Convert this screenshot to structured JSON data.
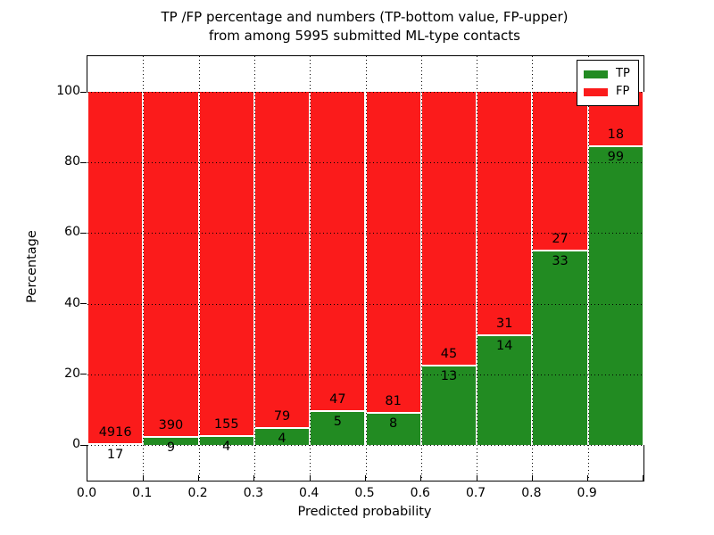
{
  "title": {
    "line1": "TP /FP percentage and numbers (TP-bottom value, FP-upper)",
    "line2": "from among 5995 submitted ML-type contacts"
  },
  "axes": {
    "xlabel": "Predicted probability",
    "ylabel": "Percentage",
    "x_tick_labels": [
      "0.0",
      "0.1",
      "0.2",
      "0.3",
      "0.4",
      "0.5",
      "0.6",
      "0.7",
      "0.8",
      "0.9"
    ],
    "y_tick_labels": [
      "0",
      "20",
      "40",
      "60",
      "80",
      "100"
    ]
  },
  "legend": {
    "items": [
      {
        "label": "TP",
        "color": "#228b22"
      },
      {
        "label": "FP",
        "color": "#fb1b1b"
      }
    ]
  },
  "colors": {
    "tp_green": "#228b22",
    "fp_red": "#fb1b1b",
    "grid": "#000000",
    "background": "#ffffff"
  },
  "chart_data": {
    "type": "bar",
    "stacked": true,
    "orientation": "vertical",
    "title": "TP /FP percentage and numbers (TP-bottom value, FP-upper) from among 5995 submitted ML-type contacts",
    "xlabel": "Predicted probability",
    "ylabel": "Percentage",
    "xlim": [
      0.0,
      1.0
    ],
    "ylim": [
      -10,
      110
    ],
    "y_ticks": [
      0,
      20,
      40,
      60,
      80,
      100
    ],
    "x_ticks": [
      0.0,
      0.1,
      0.2,
      0.3,
      0.4,
      0.5,
      0.6,
      0.7,
      0.8,
      0.9
    ],
    "bin_edges": [
      0.0,
      0.1,
      0.2,
      0.3,
      0.4,
      0.5,
      0.6,
      0.7,
      0.8,
      0.9,
      1.0
    ],
    "categories": [
      "0.0-0.1",
      "0.1-0.2",
      "0.2-0.3",
      "0.3-0.4",
      "0.4-0.5",
      "0.5-0.6",
      "0.6-0.7",
      "0.7-0.8",
      "0.8-0.9",
      "0.9-1.0"
    ],
    "series": [
      {
        "name": "TP",
        "color": "#228b22",
        "counts": [
          17,
          9,
          4,
          4,
          5,
          8,
          13,
          14,
          33,
          99
        ],
        "percent": [
          0.34,
          2.26,
          2.52,
          4.82,
          9.62,
          8.99,
          22.41,
          31.11,
          55.0,
          84.62
        ]
      },
      {
        "name": "FP",
        "color": "#fb1b1b",
        "counts": [
          4916,
          390,
          155,
          79,
          47,
          81,
          45,
          31,
          27,
          18
        ],
        "percent": [
          99.66,
          97.74,
          97.48,
          95.18,
          90.38,
          91.01,
          77.59,
          68.89,
          45.0,
          15.38
        ]
      }
    ],
    "total_contacts": 5995,
    "grid": true,
    "grid_style": "dotted",
    "legend_position": "upper right"
  }
}
